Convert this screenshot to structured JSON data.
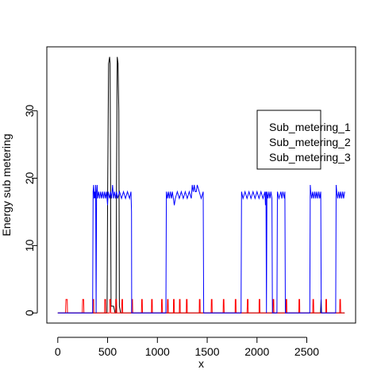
{
  "chart_data": {
    "type": "line",
    "title": "",
    "xlabel": "x",
    "ylabel": "Energy sub metering",
    "xlim": [
      -110,
      2990
    ],
    "ylim": [
      -1.5,
      39.5
    ],
    "xticks": [
      0,
      500,
      1000,
      1500,
      2000,
      2500
    ],
    "yticks": [
      0,
      10,
      20,
      30
    ],
    "grid": false,
    "legend_position": "top-right",
    "series": [
      {
        "name": "Sub_metering_1",
        "color": "#000000",
        "points": [
          [
            0,
            0
          ],
          [
            100,
            0
          ],
          [
            300,
            0
          ],
          [
            390,
            0
          ],
          [
            400,
            0
          ],
          [
            480,
            0
          ],
          [
            495,
            0
          ],
          [
            500,
            16
          ],
          [
            510,
            37
          ],
          [
            520,
            38
          ],
          [
            525,
            37
          ],
          [
            530,
            20
          ],
          [
            535,
            1
          ],
          [
            560,
            1
          ],
          [
            575,
            0
          ],
          [
            585,
            0
          ],
          [
            590,
            20
          ],
          [
            597,
            38
          ],
          [
            605,
            37
          ],
          [
            613,
            30
          ],
          [
            618,
            1
          ],
          [
            630,
            0
          ],
          [
            700,
            0
          ],
          [
            1000,
            0
          ],
          [
            1500,
            0
          ],
          [
            2000,
            0
          ],
          [
            2500,
            0
          ],
          [
            2638,
            0
          ],
          [
            2643,
            2
          ],
          [
            2648,
            0
          ],
          [
            2880,
            0
          ]
        ]
      },
      {
        "name": "Sub_metering_2",
        "color": "#ff0000",
        "points": [
          [
            0,
            0
          ],
          [
            78,
            0
          ],
          [
            80,
            1
          ],
          [
            82,
            2
          ],
          [
            95,
            2
          ],
          [
            97,
            0
          ],
          [
            246,
            0
          ],
          [
            248,
            1
          ],
          [
            250,
            2
          ],
          [
            260,
            2
          ],
          [
            262,
            0
          ],
          [
            350,
            0
          ],
          [
            352,
            2
          ],
          [
            360,
            2
          ],
          [
            362,
            0
          ],
          [
            470,
            0
          ],
          [
            472,
            2
          ],
          [
            480,
            2
          ],
          [
            482,
            0
          ],
          [
            520,
            0
          ],
          [
            522,
            2
          ],
          [
            530,
            2
          ],
          [
            532,
            0
          ],
          [
            580,
            0
          ],
          [
            582,
            2
          ],
          [
            590,
            2
          ],
          [
            592,
            0
          ],
          [
            640,
            0
          ],
          [
            642,
            1
          ],
          [
            645,
            2
          ],
          [
            650,
            2
          ],
          [
            652,
            0
          ],
          [
            740,
            0
          ],
          [
            742,
            1
          ],
          [
            744,
            2
          ],
          [
            750,
            2
          ],
          [
            752,
            0
          ],
          [
            840,
            0
          ],
          [
            842,
            2
          ],
          [
            848,
            2
          ],
          [
            850,
            0
          ],
          [
            940,
            0
          ],
          [
            942,
            2
          ],
          [
            948,
            2
          ],
          [
            950,
            0
          ],
          [
            1040,
            0
          ],
          [
            1042,
            2
          ],
          [
            1048,
            2
          ],
          [
            1050,
            0
          ],
          [
            1100,
            0
          ],
          [
            1102,
            2
          ],
          [
            1108,
            2
          ],
          [
            1110,
            0
          ],
          [
            1160,
            0
          ],
          [
            1162,
            2
          ],
          [
            1168,
            2
          ],
          [
            1170,
            0
          ],
          [
            1220,
            0
          ],
          [
            1222,
            2
          ],
          [
            1228,
            2
          ],
          [
            1230,
            0
          ],
          [
            1290,
            0
          ],
          [
            1292,
            2
          ],
          [
            1298,
            2
          ],
          [
            1300,
            0
          ],
          [
            1420,
            0
          ],
          [
            1422,
            2
          ],
          [
            1428,
            2
          ],
          [
            1430,
            0
          ],
          [
            1540,
            0
          ],
          [
            1542,
            2
          ],
          [
            1548,
            2
          ],
          [
            1550,
            0
          ],
          [
            1660,
            0
          ],
          [
            1662,
            2
          ],
          [
            1668,
            2
          ],
          [
            1670,
            0
          ],
          [
            1780,
            0
          ],
          [
            1782,
            2
          ],
          [
            1788,
            2
          ],
          [
            1790,
            0
          ],
          [
            1900,
            0
          ],
          [
            1902,
            1
          ],
          [
            1904,
            2
          ],
          [
            1910,
            2
          ],
          [
            1912,
            0
          ],
          [
            2020,
            0
          ],
          [
            2022,
            2
          ],
          [
            2028,
            2
          ],
          [
            2030,
            0
          ],
          [
            2160,
            0
          ],
          [
            2162,
            2
          ],
          [
            2168,
            2
          ],
          [
            2170,
            0
          ],
          [
            2290,
            0
          ],
          [
            2292,
            2
          ],
          [
            2298,
            2
          ],
          [
            2300,
            0
          ],
          [
            2420,
            0
          ],
          [
            2422,
            2
          ],
          [
            2428,
            2
          ],
          [
            2430,
            0
          ],
          [
            2560,
            0
          ],
          [
            2562,
            2
          ],
          [
            2568,
            2
          ],
          [
            2570,
            0
          ],
          [
            2690,
            0
          ],
          [
            2692,
            2
          ],
          [
            2698,
            2
          ],
          [
            2700,
            0
          ],
          [
            2830,
            0
          ],
          [
            2832,
            2
          ],
          [
            2838,
            2
          ],
          [
            2840,
            0
          ],
          [
            2880,
            0
          ]
        ]
      },
      {
        "name": "Sub_metering_3",
        "color": "#0000ff",
        "points": [
          [
            0,
            0
          ],
          [
            350,
            0
          ],
          [
            355,
            18
          ],
          [
            360,
            19
          ],
          [
            365,
            17
          ],
          [
            370,
            18
          ],
          [
            375,
            17
          ],
          [
            380,
            19
          ],
          [
            385,
            0
          ],
          [
            390,
            18
          ],
          [
            395,
            19
          ],
          [
            400,
            17
          ],
          [
            410,
            18
          ],
          [
            420,
            17
          ],
          [
            430,
            18
          ],
          [
            440,
            17
          ],
          [
            450,
            18
          ],
          [
            460,
            17
          ],
          [
            470,
            18
          ],
          [
            480,
            17
          ],
          [
            490,
            18
          ],
          [
            495,
            17
          ],
          [
            500,
            16
          ],
          [
            505,
            18
          ],
          [
            520,
            17
          ],
          [
            530,
            18
          ],
          [
            540,
            17
          ],
          [
            550,
            19
          ],
          [
            560,
            17
          ],
          [
            570,
            18
          ],
          [
            580,
            17
          ],
          [
            590,
            18
          ],
          [
            600,
            17
          ],
          [
            620,
            18
          ],
          [
            640,
            17
          ],
          [
            660,
            18
          ],
          [
            680,
            17
          ],
          [
            700,
            18
          ],
          [
            720,
            17
          ],
          [
            735,
            18
          ],
          [
            740,
            15
          ],
          [
            742,
            0
          ],
          [
            1085,
            0
          ],
          [
            1090,
            18
          ],
          [
            1100,
            17
          ],
          [
            1110,
            18
          ],
          [
            1120,
            17
          ],
          [
            1130,
            18
          ],
          [
            1140,
            17
          ],
          [
            1150,
            18
          ],
          [
            1160,
            17
          ],
          [
            1170,
            16
          ],
          [
            1180,
            17
          ],
          [
            1200,
            18
          ],
          [
            1220,
            17
          ],
          [
            1240,
            18
          ],
          [
            1260,
            17
          ],
          [
            1280,
            18
          ],
          [
            1300,
            17
          ],
          [
            1320,
            18
          ],
          [
            1340,
            17
          ],
          [
            1350,
            19
          ],
          [
            1360,
            18
          ],
          [
            1370,
            19
          ],
          [
            1380,
            18
          ],
          [
            1390,
            18
          ],
          [
            1400,
            19
          ],
          [
            1420,
            18
          ],
          [
            1440,
            17
          ],
          [
            1460,
            18
          ],
          [
            1465,
            0
          ],
          [
            1840,
            0
          ],
          [
            1845,
            18
          ],
          [
            1860,
            17
          ],
          [
            1880,
            18
          ],
          [
            1900,
            17
          ],
          [
            1920,
            18
          ],
          [
            1940,
            17
          ],
          [
            1960,
            18
          ],
          [
            1980,
            17
          ],
          [
            2000,
            18
          ],
          [
            2020,
            17
          ],
          [
            2040,
            18
          ],
          [
            2060,
            17
          ],
          [
            2080,
            18
          ],
          [
            2085,
            16
          ],
          [
            2090,
            18
          ],
          [
            2095,
            0
          ],
          [
            2100,
            18
          ],
          [
            2110,
            17
          ],
          [
            2120,
            18
          ],
          [
            2130,
            17
          ],
          [
            2140,
            18
          ],
          [
            2150,
            17
          ],
          [
            2155,
            0
          ],
          [
            2200,
            0
          ],
          [
            2205,
            18
          ],
          [
            2220,
            17
          ],
          [
            2240,
            18
          ],
          [
            2250,
            17
          ],
          [
            2260,
            18
          ],
          [
            2275,
            17
          ],
          [
            2280,
            18
          ],
          [
            2285,
            0
          ],
          [
            2530,
            0
          ],
          [
            2535,
            19
          ],
          [
            2540,
            18
          ],
          [
            2550,
            17
          ],
          [
            2560,
            18
          ],
          [
            2570,
            17
          ],
          [
            2580,
            18
          ],
          [
            2590,
            17
          ],
          [
            2600,
            18
          ],
          [
            2610,
            17
          ],
          [
            2620,
            18
          ],
          [
            2630,
            17
          ],
          [
            2640,
            18
          ],
          [
            2645,
            0
          ],
          [
            2790,
            0
          ],
          [
            2795,
            19
          ],
          [
            2800,
            18
          ],
          [
            2810,
            17
          ],
          [
            2820,
            18
          ],
          [
            2830,
            17
          ],
          [
            2840,
            18
          ],
          [
            2850,
            17
          ],
          [
            2860,
            18
          ],
          [
            2870,
            17
          ],
          [
            2880,
            18
          ]
        ]
      }
    ]
  }
}
